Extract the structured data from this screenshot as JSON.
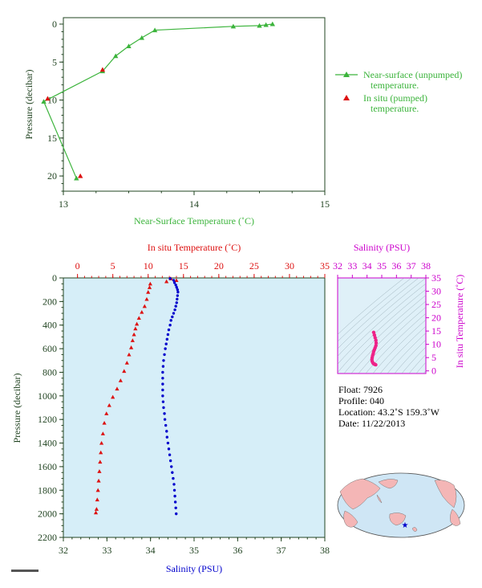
{
  "colors": {
    "green": "#3cb43c",
    "red": "#dd1111",
    "blue": "#0000cc",
    "magenta": "#cc00cc",
    "pink": "#ee2288",
    "axis_dark": "#224422",
    "plot_bg": "#d6eef8",
    "land": "#f4b6b6",
    "ocean": "#cfe6f5"
  },
  "chart_data": [
    {
      "id": "near_surface",
      "type": "line",
      "xlabel": "Near-Surface Temperature (˚C)",
      "ylabel": "Pressure (decibar)",
      "xlim": [
        13,
        15
      ],
      "ylim": [
        0,
        22
      ],
      "xticks": [
        13,
        14,
        15
      ],
      "xtick_labels": [
        "13",
        "14",
        "15"
      ],
      "yticks": [
        0,
        5,
        10,
        15,
        20
      ],
      "ytick_labels": [
        "0",
        "5",
        "10",
        "15",
        "20"
      ],
      "series": [
        {
          "name": "Near-surface (unpumped) temperature.",
          "legend_lines": [
            "Near-surface (unpumped)",
            "temperature."
          ],
          "color": "green",
          "marker": "triangle",
          "points": [
            [
              14.6,
              0.0
            ],
            [
              14.55,
              0.1
            ],
            [
              14.5,
              0.2
            ],
            [
              14.3,
              0.3
            ],
            [
              13.7,
              0.8
            ],
            [
              13.6,
              1.8
            ],
            [
              13.5,
              2.9
            ],
            [
              13.4,
              4.2
            ],
            [
              13.3,
              6.2
            ],
            [
              12.85,
              10.2
            ],
            [
              13.1,
              20.3
            ]
          ]
        },
        {
          "name": "In situ (pumped) temperature.",
          "legend_lines": [
            "In situ (pumped)",
            "temperature."
          ],
          "color": "red",
          "marker": "triangle",
          "points": [
            [
              13.3,
              6.0
            ],
            [
              12.88,
              9.8
            ],
            [
              13.13,
              20.0
            ]
          ]
        }
      ]
    },
    {
      "id": "profile",
      "type": "scatter",
      "ylabel": "Pressure (decibar)",
      "top_xlabel": "In situ Temperature (˚C)",
      "bottom_xlabel": "Salinity (PSU)",
      "temp_lim": [
        -2,
        35
      ],
      "temp_ticks": [
        0,
        5,
        10,
        15,
        20,
        25,
        30,
        35
      ],
      "temp_tick_labels": [
        "0",
        "5",
        "10",
        "15",
        "20",
        "25",
        "30",
        "35"
      ],
      "sal_lim": [
        32,
        38
      ],
      "sal_ticks": [
        32,
        33,
        34,
        35,
        36,
        37,
        38
      ],
      "sal_tick_labels": [
        "32",
        "33",
        "34",
        "35",
        "36",
        "37",
        "38"
      ],
      "ylim": [
        0,
        2200
      ],
      "yticks": [
        0,
        200,
        400,
        600,
        800,
        1000,
        1200,
        1400,
        1600,
        1800,
        2000,
        2200
      ],
      "ytick_labels": [
        "0",
        "200",
        "400",
        "600",
        "800",
        "1000",
        "1200",
        "1400",
        "1600",
        "1800",
        "2000",
        "2200"
      ],
      "series": [
        {
          "name": "In situ Temperature",
          "color": "red",
          "marker": "triangle",
          "points": [
            [
              13.2,
              5
            ],
            [
              14.0,
              20
            ],
            [
              12.6,
              30
            ],
            [
              10.3,
              50
            ],
            [
              10.2,
              80
            ],
            [
              10.0,
              120
            ],
            [
              9.8,
              180
            ],
            [
              9.5,
              240
            ],
            [
              9.1,
              290
            ],
            [
              8.7,
              340
            ],
            [
              8.4,
              390
            ],
            [
              8.2,
              430
            ],
            [
              8.0,
              480
            ],
            [
              7.8,
              530
            ],
            [
              7.6,
              590
            ],
            [
              7.3,
              650
            ],
            [
              7.0,
              720
            ],
            [
              6.6,
              790
            ],
            [
              6.1,
              870
            ],
            [
              5.6,
              940
            ],
            [
              5.0,
              1010
            ],
            [
              4.5,
              1080
            ],
            [
              4.1,
              1150
            ],
            [
              3.8,
              1230
            ],
            [
              3.6,
              1320
            ],
            [
              3.4,
              1400
            ],
            [
              3.3,
              1480
            ],
            [
              3.2,
              1560
            ],
            [
              3.1,
              1640
            ],
            [
              3.0,
              1720
            ],
            [
              2.9,
              1800
            ],
            [
              2.8,
              1880
            ],
            [
              2.7,
              1960
            ],
            [
              2.6,
              1990
            ]
          ]
        },
        {
          "name": "Salinity",
          "color": "blue",
          "marker": "dot",
          "points": [
            [
              34.45,
              5
            ],
            [
              34.53,
              20
            ],
            [
              34.55,
              40
            ],
            [
              34.58,
              60
            ],
            [
              34.6,
              80
            ],
            [
              34.62,
              100
            ],
            [
              34.63,
              120
            ],
            [
              34.62,
              150
            ],
            [
              34.61,
              180
            ],
            [
              34.6,
              210
            ],
            [
              34.58,
              240
            ],
            [
              34.56,
              270
            ],
            [
              34.53,
              300
            ],
            [
              34.5,
              330
            ],
            [
              34.47,
              360
            ],
            [
              34.45,
              400
            ],
            [
              34.42,
              440
            ],
            [
              34.4,
              480
            ],
            [
              34.38,
              520
            ],
            [
              34.36,
              560
            ],
            [
              34.34,
              600
            ],
            [
              34.32,
              650
            ],
            [
              34.3,
              700
            ],
            [
              34.29,
              750
            ],
            [
              34.28,
              800
            ],
            [
              34.28,
              850
            ],
            [
              34.28,
              900
            ],
            [
              34.28,
              950
            ],
            [
              34.28,
              1000
            ],
            [
              34.29,
              1050
            ],
            [
              34.3,
              1100
            ],
            [
              34.32,
              1150
            ],
            [
              34.33,
              1200
            ],
            [
              34.35,
              1250
            ],
            [
              34.37,
              1300
            ],
            [
              34.38,
              1350
            ],
            [
              34.4,
              1400
            ],
            [
              34.42,
              1450
            ],
            [
              34.44,
              1500
            ],
            [
              34.46,
              1550
            ],
            [
              34.48,
              1600
            ],
            [
              34.5,
              1650
            ],
            [
              34.52,
              1700
            ],
            [
              34.54,
              1750
            ],
            [
              34.55,
              1800
            ],
            [
              34.56,
              1850
            ],
            [
              34.57,
              1900
            ],
            [
              34.58,
              1950
            ],
            [
              34.59,
              2000
            ]
          ]
        }
      ]
    },
    {
      "id": "ts_diagram",
      "type": "scatter",
      "top_xlabel": "Salinity (PSU)",
      "right_ylabel": "In situ Temperature (˚C)",
      "xlim": [
        32,
        38
      ],
      "xticks": [
        32,
        33,
        34,
        35,
        36,
        37,
        38
      ],
      "xtick_labels": [
        "32",
        "33",
        "34",
        "35",
        "36",
        "37",
        "38"
      ],
      "ylim": [
        -1,
        35
      ],
      "yticks": [
        0,
        5,
        10,
        15,
        20,
        25,
        30,
        35
      ],
      "ytick_labels": [
        "0",
        "5",
        "10",
        "15",
        "20",
        "25",
        "30",
        "35"
      ],
      "series": [
        {
          "name": "T-S",
          "color": "pink",
          "marker": "dot",
          "points": [
            [
              34.45,
              14.5
            ],
            [
              34.5,
              13.5
            ],
            [
              34.55,
              12.5
            ],
            [
              34.6,
              11.5
            ],
            [
              34.62,
              10.5
            ],
            [
              34.6,
              9.5
            ],
            [
              34.55,
              8.7
            ],
            [
              34.5,
              8.0
            ],
            [
              34.45,
              7.3
            ],
            [
              34.42,
              6.5
            ],
            [
              34.38,
              5.8
            ],
            [
              34.35,
              5.0
            ],
            [
              34.33,
              4.3
            ],
            [
              34.35,
              3.6
            ],
            [
              34.4,
              3.0
            ],
            [
              34.45,
              2.7
            ],
            [
              34.5,
              2.5
            ],
            [
              34.55,
              2.4
            ],
            [
              34.59,
              2.3
            ]
          ]
        }
      ]
    }
  ],
  "info": {
    "float": "Float:  7926",
    "profile": "Profile:  040",
    "location": "Location:  43.2˚S  159.3˚W",
    "date": "Date:  11/22/2013"
  },
  "map": {
    "marker_lat": -43.2,
    "marker_lon": -159.3
  }
}
